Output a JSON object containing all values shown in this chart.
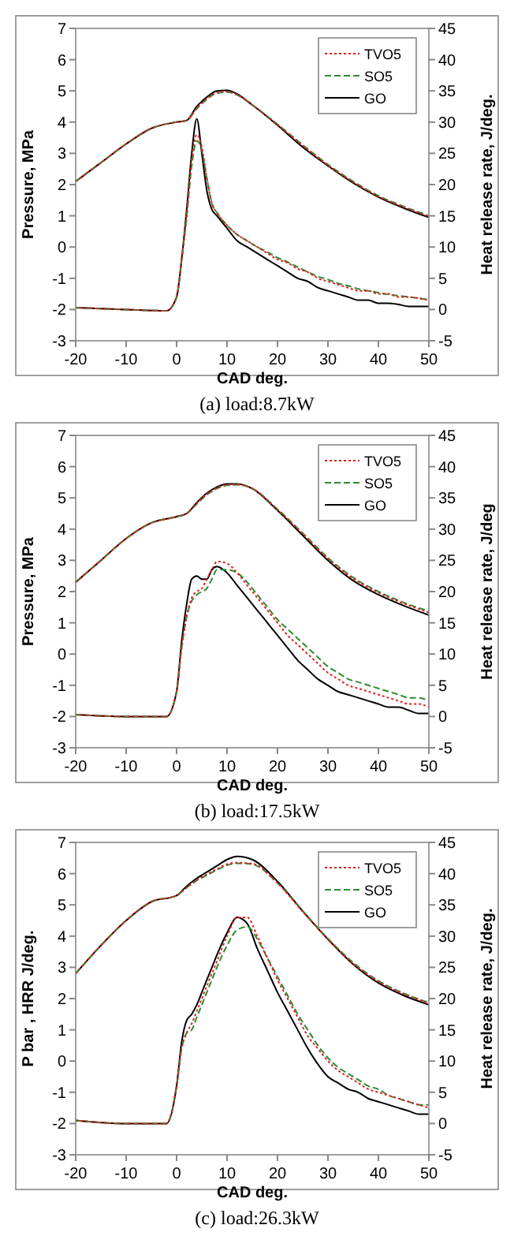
{
  "chart_data": [
    {
      "type": "line",
      "title": "(a)  load:8.7kW",
      "xlabel": "CAD   deg.",
      "ylabel": "Pressure, MPa",
      "y2label": "Heat release rate, J/deg.",
      "xlim": [
        -20,
        50
      ],
      "xticks": [
        -20,
        -10,
        0,
        10,
        20,
        30,
        40,
        50
      ],
      "ylim": [
        -3,
        7
      ],
      "yticks": [
        -3,
        -2,
        -1,
        0,
        1,
        2,
        3,
        4,
        5,
        6,
        7
      ],
      "y2lim": [
        -5,
        45
      ],
      "y2ticks": [
        -5,
        0,
        5,
        10,
        15,
        20,
        25,
        30,
        35,
        40,
        45
      ],
      "legend": "top right",
      "marker": "none",
      "x": [
        -20,
        -15,
        -10,
        -5,
        0,
        2,
        4,
        6,
        8,
        10,
        12,
        15,
        20,
        25,
        30,
        35,
        40,
        45,
        50
      ],
      "series": [
        {
          "name": "TVO5",
          "color": "#e02020",
          "line_style": "dotted",
          "values": [
            2.1,
            2.7,
            3.3,
            3.8,
            4.0,
            4.05,
            4.45,
            4.75,
            4.95,
            4.98,
            4.88,
            4.55,
            3.92,
            3.25,
            2.62,
            2.08,
            1.62,
            1.28,
            0.98
          ]
        },
        {
          "name": "SO5",
          "color": "#2e8b2e",
          "line_style": "dashed",
          "values": [
            2.1,
            2.7,
            3.3,
            3.8,
            4.0,
            4.05,
            4.43,
            4.73,
            4.93,
            4.96,
            4.87,
            4.55,
            3.93,
            3.27,
            2.64,
            2.1,
            1.64,
            1.3,
            1.0
          ]
        },
        {
          "name": "GO",
          "color": "#000000",
          "line_style": "solid",
          "values": [
            2.1,
            2.7,
            3.3,
            3.8,
            4.0,
            4.05,
            4.5,
            4.8,
            5.0,
            5.02,
            4.9,
            4.55,
            3.9,
            3.2,
            2.6,
            2.05,
            1.6,
            1.25,
            0.95
          ]
        },
        {
          "color": "#e02020",
          "line_style": "dotted",
          "axis": "y2",
          "x": [
            -20,
            -10,
            -2,
            0,
            1,
            2,
            3,
            4,
            5,
            6,
            7,
            8,
            10,
            12,
            14,
            16,
            18,
            20,
            22,
            24,
            26,
            28,
            30,
            32,
            34,
            36,
            38,
            40,
            42,
            44,
            46,
            48,
            50
          ],
          "values": [
            0.3,
            0,
            -0.2,
            2,
            8,
            15,
            24,
            28,
            26,
            21,
            17,
            15.5,
            13.5,
            12,
            11,
            10,
            9,
            8,
            7.5,
            6.5,
            6,
            5,
            4.5,
            4,
            3.5,
            3,
            3,
            2.5,
            2.5,
            2,
            2,
            1.8,
            1.5
          ]
        },
        {
          "color": "#2e8b2e",
          "line_style": "dashed",
          "axis": "y2",
          "x": [
            -20,
            -10,
            -2,
            0,
            1,
            2,
            3,
            4,
            5,
            6,
            7,
            8,
            10,
            12,
            14,
            16,
            18,
            20,
            22,
            24,
            26,
            28,
            30,
            32,
            34,
            36,
            38,
            40,
            42,
            44,
            46,
            48,
            50
          ],
          "values": [
            0.3,
            0,
            -0.2,
            2,
            8,
            15,
            23,
            27,
            25.5,
            21,
            17,
            15.5,
            13.5,
            12,
            11,
            10,
            9.2,
            8.3,
            7.6,
            6.8,
            6,
            5.3,
            4.8,
            4.2,
            3.8,
            3.3,
            3,
            2.7,
            2.4,
            2.2,
            2,
            1.8,
            1.6
          ]
        },
        {
          "color": "#000000",
          "line_style": "solid",
          "axis": "y2",
          "x": [
            -20,
            -10,
            -2,
            0,
            1,
            2,
            3,
            4,
            5,
            6,
            7,
            8,
            10,
            12,
            14,
            16,
            18,
            20,
            22,
            24,
            26,
            28,
            30,
            32,
            34,
            36,
            38,
            40,
            42,
            44,
            46,
            48,
            50
          ],
          "values": [
            0.3,
            0,
            -0.2,
            2,
            8,
            16,
            25,
            30.5,
            25,
            19,
            16,
            15,
            13,
            11,
            10,
            9,
            8,
            7,
            6,
            5,
            4.5,
            3.5,
            3,
            2.5,
            2,
            1.5,
            1.5,
            1,
            1,
            0.8,
            0.5,
            0.5,
            0.5
          ]
        }
      ]
    },
    {
      "type": "line",
      "title": "(b)  load:17.5kW",
      "xlabel": "CAD   deg.",
      "ylabel": "Pressure, MPa",
      "y2label": "Heat release rate, J/deg",
      "xlim": [
        -20,
        50
      ],
      "xticks": [
        -20,
        -10,
        0,
        10,
        20,
        30,
        40,
        50
      ],
      "ylim": [
        -3,
        7
      ],
      "yticks": [
        -3,
        -2,
        -1,
        0,
        1,
        2,
        3,
        4,
        5,
        6,
        7
      ],
      "y2lim": [
        -5,
        45
      ],
      "y2ticks": [
        -5,
        0,
        5,
        10,
        15,
        20,
        25,
        30,
        35,
        40,
        45
      ],
      "legend": "top right",
      "marker": "none",
      "x": [
        -20,
        -15,
        -10,
        -5,
        0,
        2,
        4,
        6,
        8,
        10,
        12,
        15,
        20,
        25,
        30,
        35,
        40,
        45,
        50
      ],
      "series": [
        {
          "name": "TVO5",
          "color": "#e02020",
          "line_style": "dotted",
          "values": [
            2.3,
            3.0,
            3.7,
            4.2,
            4.4,
            4.5,
            4.83,
            5.12,
            5.32,
            5.42,
            5.43,
            5.3,
            4.62,
            3.85,
            3.05,
            2.42,
            1.97,
            1.62,
            1.33
          ]
        },
        {
          "name": "SO5",
          "color": "#2e8b2e",
          "line_style": "dashed",
          "values": [
            2.3,
            3.0,
            3.7,
            4.2,
            4.4,
            4.5,
            4.8,
            5.1,
            5.3,
            5.4,
            5.42,
            5.3,
            4.64,
            3.87,
            3.08,
            2.45,
            2.0,
            1.65,
            1.37
          ]
        },
        {
          "name": "GO",
          "color": "#000000",
          "line_style": "solid",
          "values": [
            2.3,
            3.0,
            3.7,
            4.2,
            4.4,
            4.5,
            4.85,
            5.15,
            5.35,
            5.45,
            5.45,
            5.3,
            4.6,
            3.8,
            3.0,
            2.35,
            1.9,
            1.55,
            1.25
          ]
        },
        {
          "color": "#e02020",
          "line_style": "dotted",
          "axis": "y2",
          "x": [
            -20,
            -10,
            -2,
            0,
            1,
            2,
            3,
            4,
            5,
            6,
            7,
            8,
            10,
            12,
            14,
            16,
            18,
            20,
            22,
            24,
            26,
            28,
            30,
            32,
            34,
            36,
            38,
            40,
            42,
            44,
            46,
            48,
            50
          ],
          "values": [
            0.3,
            0,
            0,
            4,
            11,
            16,
            19,
            20,
            20.5,
            22,
            23.5,
            24.8,
            24.5,
            23,
            21,
            19,
            17,
            15,
            13,
            11.5,
            10,
            8.5,
            7,
            6,
            5,
            4.5,
            4,
            3.5,
            3,
            2.5,
            2,
            2,
            1.5
          ]
        },
        {
          "color": "#2e8b2e",
          "line_style": "dashed",
          "axis": "y2",
          "x": [
            -20,
            -10,
            -2,
            0,
            1,
            2,
            3,
            4,
            5,
            6,
            7,
            8,
            10,
            12,
            14,
            16,
            18,
            20,
            22,
            24,
            26,
            28,
            30,
            32,
            34,
            36,
            38,
            40,
            42,
            44,
            46,
            48,
            50
          ],
          "values": [
            0.3,
            0,
            0,
            4,
            11,
            16,
            18.5,
            19.5,
            20,
            20.5,
            22,
            23.5,
            23.5,
            23,
            21.5,
            19.5,
            17.5,
            15.5,
            14,
            12.5,
            11,
            9.5,
            8,
            7,
            6,
            5.5,
            5,
            4.5,
            4,
            3.5,
            3,
            3,
            2.5
          ]
        },
        {
          "color": "#000000",
          "line_style": "solid",
          "axis": "y2",
          "x": [
            -20,
            -10,
            -2,
            0,
            1,
            2,
            3,
            4,
            5,
            6,
            7,
            8,
            10,
            12,
            14,
            16,
            18,
            20,
            22,
            24,
            26,
            28,
            30,
            32,
            34,
            36,
            38,
            40,
            42,
            44,
            46,
            48,
            50
          ],
          "values": [
            0.3,
            0,
            0,
            4,
            12,
            18,
            22,
            22.5,
            22,
            22,
            23.5,
            24,
            23,
            21,
            19,
            17,
            15,
            13,
            11,
            9,
            7.5,
            6,
            5,
            4,
            3.5,
            3,
            2.5,
            2,
            1.5,
            1.5,
            1,
            0.5,
            0.5
          ]
        }
      ]
    },
    {
      "type": "line",
      "title": "(c)  load:26.3kW",
      "xlabel": "CAD   deg.",
      "ylabel": "P bar ,    HRR  J/deg.",
      "y2label": "Heat release rate, J/deg.",
      "xlim": [
        -20,
        50
      ],
      "xticks": [
        -20,
        -10,
        0,
        10,
        20,
        30,
        40,
        50
      ],
      "ylim": [
        -3,
        7
      ],
      "yticks": [
        -3,
        -2,
        -1,
        0,
        1,
        2,
        3,
        4,
        5,
        6,
        7
      ],
      "y2lim": [
        -5,
        45
      ],
      "y2ticks": [
        -5,
        0,
        5,
        10,
        15,
        20,
        25,
        30,
        35,
        40,
        45
      ],
      "legend": "top right",
      "marker": "none",
      "x": [
        -20,
        -15,
        -10,
        -5,
        0,
        2,
        4,
        6,
        8,
        10,
        12,
        15,
        20,
        25,
        30,
        35,
        40,
        45,
        50
      ],
      "series": [
        {
          "name": "TVO5",
          "color": "#e02020",
          "line_style": "dotted",
          "values": [
            2.8,
            3.7,
            4.5,
            5.1,
            5.3,
            5.55,
            5.8,
            5.98,
            6.15,
            6.3,
            6.35,
            6.32,
            5.7,
            4.78,
            3.9,
            3.12,
            2.55,
            2.15,
            1.85
          ]
        },
        {
          "name": "SO5",
          "color": "#2e8b2e",
          "line_style": "dashed",
          "values": [
            2.8,
            3.7,
            4.5,
            5.1,
            5.3,
            5.55,
            5.78,
            5.95,
            6.12,
            6.27,
            6.33,
            6.3,
            5.7,
            4.8,
            3.92,
            3.15,
            2.57,
            2.17,
            1.87
          ]
        },
        {
          "name": "GO",
          "color": "#000000",
          "line_style": "solid",
          "values": [
            2.8,
            3.7,
            4.5,
            5.1,
            5.3,
            5.6,
            5.85,
            6.05,
            6.25,
            6.45,
            6.55,
            6.45,
            5.75,
            4.8,
            3.9,
            3.1,
            2.5,
            2.1,
            1.8
          ]
        },
        {
          "color": "#e02020",
          "line_style": "dotted",
          "axis": "y2",
          "x": [
            -20,
            -10,
            -2,
            0,
            1,
            2,
            3,
            4,
            5,
            6,
            7,
            8,
            10,
            12,
            14,
            16,
            18,
            20,
            22,
            24,
            26,
            28,
            30,
            32,
            34,
            36,
            38,
            40,
            42,
            44,
            46,
            48,
            50
          ],
          "values": [
            0.5,
            0,
            0,
            6,
            12,
            14.5,
            16,
            18,
            20,
            22,
            24,
            26,
            30,
            33,
            33,
            30,
            26.5,
            23,
            20,
            17,
            14,
            12,
            10,
            8.5,
            7.5,
            6.5,
            5.5,
            5,
            4.5,
            4,
            3.5,
            3,
            2.5
          ]
        },
        {
          "color": "#2e8b2e",
          "line_style": "dashed",
          "axis": "y2",
          "x": [
            -20,
            -10,
            -2,
            0,
            1,
            2,
            3,
            4,
            5,
            6,
            7,
            8,
            10,
            12,
            14,
            16,
            18,
            20,
            22,
            24,
            26,
            28,
            30,
            32,
            34,
            36,
            38,
            40,
            42,
            44,
            46,
            48,
            50
          ],
          "values": [
            0.5,
            0,
            0,
            6,
            12,
            14.5,
            15,
            17,
            19,
            21,
            23,
            25,
            28.5,
            31,
            31.5,
            29.5,
            26.5,
            23.5,
            20.5,
            17.5,
            15,
            12.5,
            10.5,
            9,
            8,
            7,
            6,
            5.5,
            4.5,
            4,
            3.5,
            3,
            3
          ]
        },
        {
          "color": "#000000",
          "line_style": "solid",
          "axis": "y2",
          "x": [
            -20,
            -10,
            -2,
            0,
            1,
            2,
            3,
            4,
            5,
            6,
            7,
            8,
            10,
            12,
            14,
            16,
            18,
            20,
            22,
            24,
            26,
            28,
            30,
            32,
            34,
            36,
            38,
            40,
            42,
            44,
            46,
            48,
            50
          ],
          "values": [
            0.5,
            0,
            0,
            6,
            13,
            16.5,
            17.5,
            19,
            21,
            23,
            25,
            27,
            30.5,
            33,
            32,
            28,
            24.5,
            21,
            18,
            15,
            12,
            9.5,
            7.5,
            6.5,
            5.5,
            5,
            4,
            3.5,
            3,
            2.5,
            2,
            1.5,
            1.5
          ]
        }
      ]
    }
  ]
}
